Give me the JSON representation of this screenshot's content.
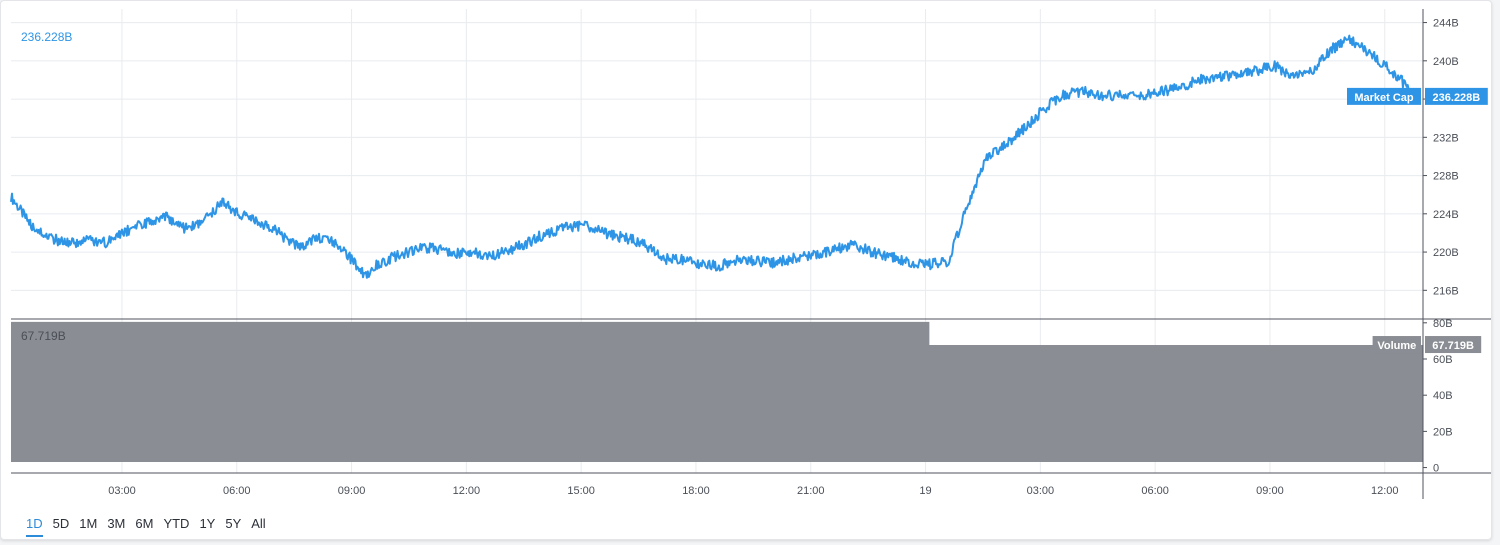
{
  "colors": {
    "line": "#2e95e6",
    "volume": "#8a8d93",
    "grid": "#e8ebef",
    "axis": "#4a4f57",
    "tag_marketcap": "#2e95e6",
    "tag_volume": "#8a8d93"
  },
  "price_label": "236.228B",
  "volume_label_partial": "67.719B",
  "chart_data": {
    "type": "line",
    "panes": [
      {
        "name": "Market Cap",
        "unit": "B",
        "ylim": [
          213,
          245
        ],
        "yticks": [
          "216B",
          "220B",
          "224B",
          "228B",
          "232B",
          "236B",
          "240B",
          "244B"
        ],
        "ytick_values": [
          216,
          220,
          224,
          228,
          232,
          236,
          240,
          244
        ],
        "last_value": 236.228,
        "last_value_label": "236.228B",
        "tag_name": "Market Cap",
        "series": [
          {
            "name": "Market Cap",
            "x_hours": [
              0,
              0.5,
              1,
              1.5,
              2,
              2.5,
              3,
              3.5,
              4,
              4.5,
              5,
              5.5,
              6,
              6.5,
              7,
              7.5,
              8,
              8.5,
              9,
              9.3,
              9.5,
              10,
              10.5,
              11,
              11.5,
              12,
              12.5,
              13,
              13.5,
              14,
              14.5,
              15,
              15.5,
              16,
              16.5,
              16.9,
              17,
              17.5,
              18,
              18.5,
              19,
              19.5,
              20,
              20.5,
              21,
              21.5,
              22,
              22.5,
              23,
              23.5,
              24,
              24.5,
              25,
              25.5,
              26,
              26.5,
              27,
              27.5,
              28,
              28.5,
              29,
              29.5,
              30,
              30.5,
              31,
              31.5,
              32,
              32.5,
              33,
              33.5,
              34,
              34.5,
              35,
              35.5,
              36,
              36.3,
              36.5,
              36.7
            ],
            "values": [
              225.8,
              222.9,
              221.5,
              220.9,
              221.2,
              221.0,
              222.2,
              223.0,
              223.8,
              222.5,
              223.0,
              225.2,
              224.0,
              223.2,
              222.0,
              220.5,
              221.5,
              221.0,
              218.8,
              217.3,
              218.5,
              219.5,
              220.2,
              220.5,
              219.8,
              220.0,
              219.5,
              220.2,
              221.0,
              222.0,
              222.6,
              222.8,
              222.0,
              221.5,
              221.0,
              219.8,
              219.3,
              219.2,
              218.8,
              218.5,
              219.3,
              219.0,
              218.9,
              219.4,
              219.6,
              220.3,
              220.8,
              220.0,
              219.5,
              219.0,
              218.7,
              219.0,
              225.0,
              229.8,
              231.2,
              233.0,
              235.0,
              236.5,
              236.8,
              236.3,
              236.5,
              236.2,
              236.8,
              237.1,
              238.0,
              238.3,
              238.4,
              238.9,
              239.5,
              238.4,
              239.0,
              241.2,
              242.3,
              240.8,
              239.2,
              238.2,
              237.0,
              236.23
            ]
          }
        ]
      },
      {
        "name": "Volume",
        "unit": "B",
        "ylim": [
          -3,
          81
        ],
        "yticks": [
          "0",
          "20B",
          "40B",
          "60B",
          "80B"
        ],
        "ytick_values": [
          0,
          20,
          40,
          60,
          80
        ],
        "last_value": 67.719,
        "last_value_label": "67.719B",
        "tag_name": "Volume",
        "series": [
          {
            "name": "Volume",
            "type": "area",
            "x_hours": [
              0,
              24,
              24,
              36.9
            ],
            "values": [
              80.5,
              80.5,
              67.719,
              67.719
            ]
          }
        ]
      }
    ],
    "x_axis": {
      "unit": "hours",
      "range": [
        0,
        36.9
      ],
      "ticks": [
        {
          "label": "03:00",
          "x": 2.9
        },
        {
          "label": "06:00",
          "x": 5.9
        },
        {
          "label": "09:00",
          "x": 8.9
        },
        {
          "label": "12:00",
          "x": 11.9
        },
        {
          "label": "15:00",
          "x": 14.9
        },
        {
          "label": "18:00",
          "x": 17.9
        },
        {
          "label": "21:00",
          "x": 20.9
        },
        {
          "label": "19",
          "x": 23.9
        },
        {
          "label": "03:00",
          "x": 26.9
        },
        {
          "label": "06:00",
          "x": 29.9
        },
        {
          "label": "09:00",
          "x": 32.9
        },
        {
          "label": "12:00",
          "x": 35.9
        }
      ]
    },
    "grid": true
  },
  "range_buttons": [
    {
      "label": "1D",
      "active": true
    },
    {
      "label": "5D",
      "active": false
    },
    {
      "label": "1M",
      "active": false
    },
    {
      "label": "3M",
      "active": false
    },
    {
      "label": "6M",
      "active": false
    },
    {
      "label": "YTD",
      "active": false
    },
    {
      "label": "1Y",
      "active": false
    },
    {
      "label": "5Y",
      "active": false
    },
    {
      "label": "All",
      "active": false
    }
  ]
}
